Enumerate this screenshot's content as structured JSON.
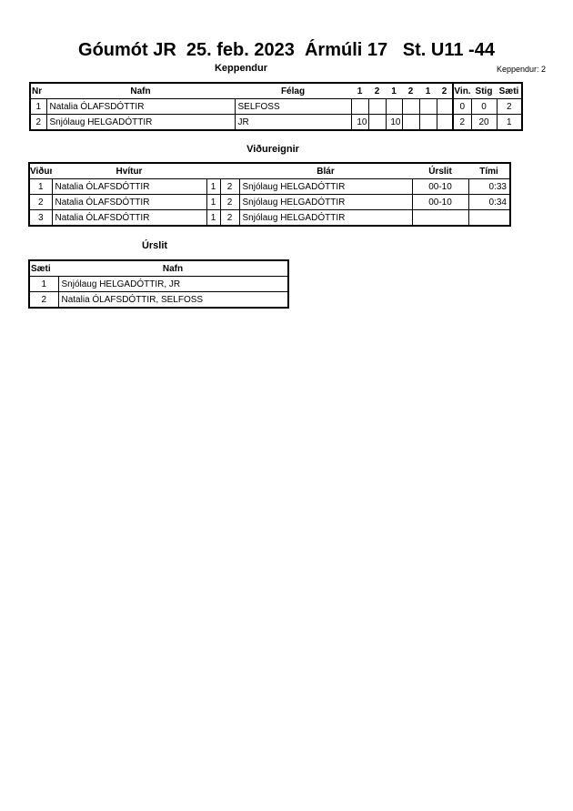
{
  "title": "Góumót JR  25. feb. 2023  Ármúli 17   St. U11 -44",
  "keppendur": {
    "heading": "Keppendur",
    "count_label": "Keppendur: 2",
    "headers": {
      "nr": "Nr",
      "nafn": "Nafn",
      "felag": "Félag",
      "rounds": [
        "1",
        "2",
        "1",
        "2",
        "1",
        "2"
      ],
      "vin": "Vin.",
      "stig": "Stig",
      "saeti": "Sæti"
    },
    "rows": [
      {
        "nr": "1",
        "nafn": "Natalia ÓLAFSDÓTTIR",
        "felag": "SELFOSS",
        "rounds": [
          "",
          "",
          "",
          "",
          "",
          ""
        ],
        "vin": "0",
        "stig": "0",
        "saeti": "2"
      },
      {
        "nr": "2",
        "nafn": "Snjólaug HELGADÓTTIR",
        "felag": "JR",
        "rounds": [
          "10",
          "",
          "10",
          "",
          "",
          ""
        ],
        "vin": "2",
        "stig": "20",
        "saeti": "1"
      }
    ]
  },
  "vidureignir": {
    "heading": "Viðureignir",
    "headers": {
      "vidureign": "Viðureign",
      "hvitur": "Hvítur",
      "blar": "Blár",
      "urslit": "Úrslit",
      "timi": "Tími"
    },
    "rows": [
      {
        "n": "1",
        "hvitur": "Natalia ÓLAFSDÓTTIR",
        "a": "1",
        "b": "2",
        "blar": "Snjólaug HELGADÓTTIR",
        "urslit": "00-10",
        "timi": "0:33"
      },
      {
        "n": "2",
        "hvitur": "Natalia ÓLAFSDÓTTIR",
        "a": "1",
        "b": "2",
        "blar": "Snjólaug HELGADÓTTIR",
        "urslit": "00-10",
        "timi": "0:34"
      },
      {
        "n": "3",
        "hvitur": "Natalia ÓLAFSDÓTTIR",
        "a": "1",
        "b": "2",
        "blar": "Snjólaug HELGADÓTTIR",
        "urslit": "",
        "timi": ""
      }
    ]
  },
  "urslit": {
    "heading": "Úrslit",
    "headers": {
      "saeti": "Sæti",
      "nafn": "Nafn"
    },
    "rows": [
      {
        "saeti": "1",
        "nafn": "Snjólaug HELGADÓTTIR, JR"
      },
      {
        "saeti": "2",
        "nafn": "Natalia ÓLAFSDÓTTIR, SELFOSS"
      }
    ]
  }
}
